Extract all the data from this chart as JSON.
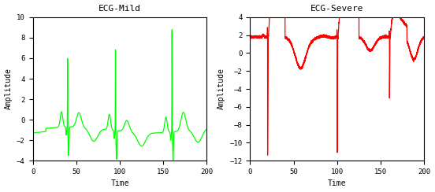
{
  "title_mild": "ECG-Mild",
  "title_severe": "ECG-Severe",
  "xlabel": "Time",
  "ylabel": "Amplitude",
  "mild_color": "#00ff00",
  "severe_color": "#ff0000",
  "mild_ylim": [
    -4,
    10
  ],
  "severe_ylim": [
    -12,
    4
  ],
  "mild_yticks": [
    -4,
    -2,
    0,
    2,
    4,
    6,
    8,
    10
  ],
  "severe_yticks": [
    -12,
    -10,
    -8,
    -6,
    -4,
    -2,
    0,
    2,
    4
  ],
  "xlim": [
    0,
    200
  ],
  "xticks": [
    0,
    50,
    100,
    150,
    200
  ],
  "line_width": 0.9,
  "bg_color": "#ffffff",
  "title_fontsize": 8,
  "label_fontsize": 7,
  "tick_fontsize": 6.5
}
